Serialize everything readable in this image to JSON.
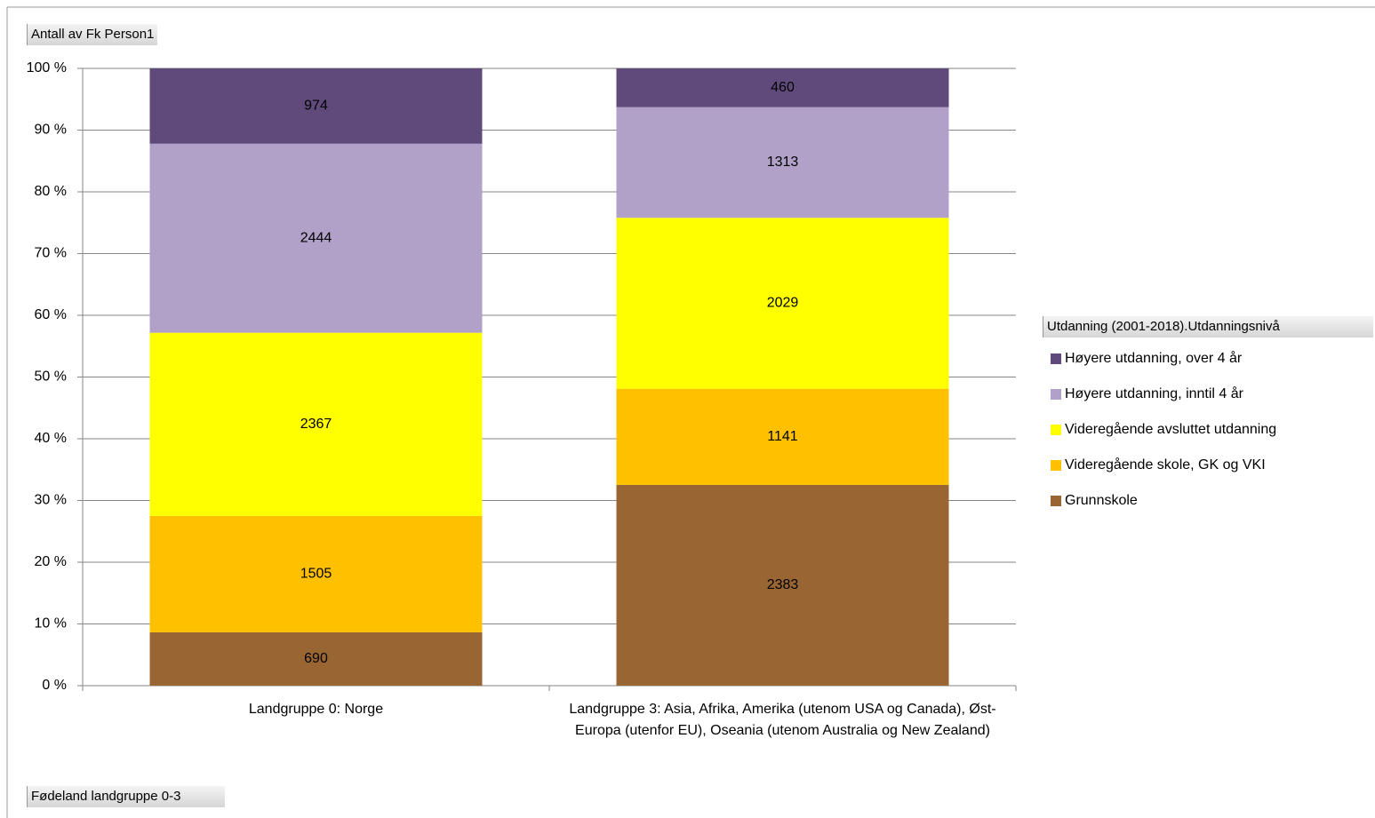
{
  "chart_data": {
    "type": "bar",
    "stacked": "percent",
    "field_buttons": {
      "values": "Antall av Fk Person1",
      "axis": "Fødeland  landgruppe 0-3"
    },
    "legend_title": "Utdanning (2001-2018).Utdanningsnivå",
    "legend_position": "right",
    "categories": [
      "Landgruppe 0: Norge",
      "Landgruppe 3: Asia, Afrika, Amerika (utenom USA og Canada), Øst-Europa (utenfor EU), Oseania (utenom Australia og New Zealand)"
    ],
    "series": [
      {
        "name": "Grunnskole",
        "color": "#996633",
        "values": [
          690,
          2383
        ]
      },
      {
        "name": "Videregående skole, GK og VKI",
        "color": "#ffc000",
        "values": [
          1505,
          1141
        ]
      },
      {
        "name": "Videregående avsluttet utdanning",
        "color": "#ffff00",
        "values": [
          2367,
          2029
        ]
      },
      {
        "name": "Høyere utdanning, inntil 4 år",
        "color": "#b1a0c7",
        "values": [
          2444,
          1313
        ]
      },
      {
        "name": "Høyere utdanning, over 4 år",
        "color": "#604a7b",
        "values": [
          974,
          460
        ]
      }
    ],
    "ylim": [
      0,
      100
    ],
    "yticks": [
      {
        "value": 0,
        "label": "0 %"
      },
      {
        "value": 10,
        "label": "10 %"
      },
      {
        "value": 20,
        "label": "20 %"
      },
      {
        "value": 30,
        "label": "30 %"
      },
      {
        "value": 40,
        "label": "40 %"
      },
      {
        "value": 50,
        "label": "50 %"
      },
      {
        "value": 60,
        "label": "60 %"
      },
      {
        "value": 70,
        "label": "70 %"
      },
      {
        "value": 80,
        "label": "80 %"
      },
      {
        "value": 90,
        "label": "90 %"
      },
      {
        "value": 100,
        "label": "100 %"
      }
    ],
    "grid": true
  }
}
